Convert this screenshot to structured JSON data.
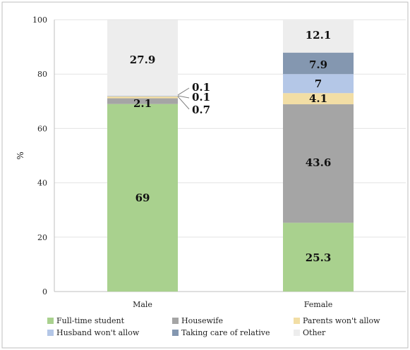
{
  "chart_data": {
    "type": "bar",
    "stacked": true,
    "categories": [
      "Male",
      "Female"
    ],
    "ylabel": "%",
    "ylim": [
      0,
      100
    ],
    "yticks": [
      0,
      20,
      40,
      60,
      80,
      100
    ],
    "grid": true,
    "legend_position": "bottom",
    "series": [
      {
        "name": "Full-time student",
        "color": "#a9d18e",
        "values": [
          69,
          25.3
        ],
        "labels": [
          "69",
          "25.3"
        ]
      },
      {
        "name": "Housewife",
        "color": "#a5a5a5",
        "values": [
          2.1,
          43.6
        ],
        "labels": [
          "2.1",
          "43.6"
        ]
      },
      {
        "name": "Parents won't allow",
        "color": "#f2dea5",
        "values": [
          0.7,
          4.1
        ],
        "labels": [
          "0.7",
          "4.1"
        ]
      },
      {
        "name": "Husband won't allow",
        "color": "#b4c7e7",
        "values": [
          0.1,
          7
        ],
        "labels": [
          "0.1",
          "7"
        ]
      },
      {
        "name": "Taking care of relative",
        "color": "#8497b0",
        "values": [
          0.1,
          7.9
        ],
        "labels": [
          "0.1",
          "7.9"
        ]
      },
      {
        "name": "Other",
        "color": "#ededed",
        "values": [
          27.9,
          12.1
        ],
        "labels": [
          "27.9",
          "12.1"
        ]
      }
    ]
  }
}
